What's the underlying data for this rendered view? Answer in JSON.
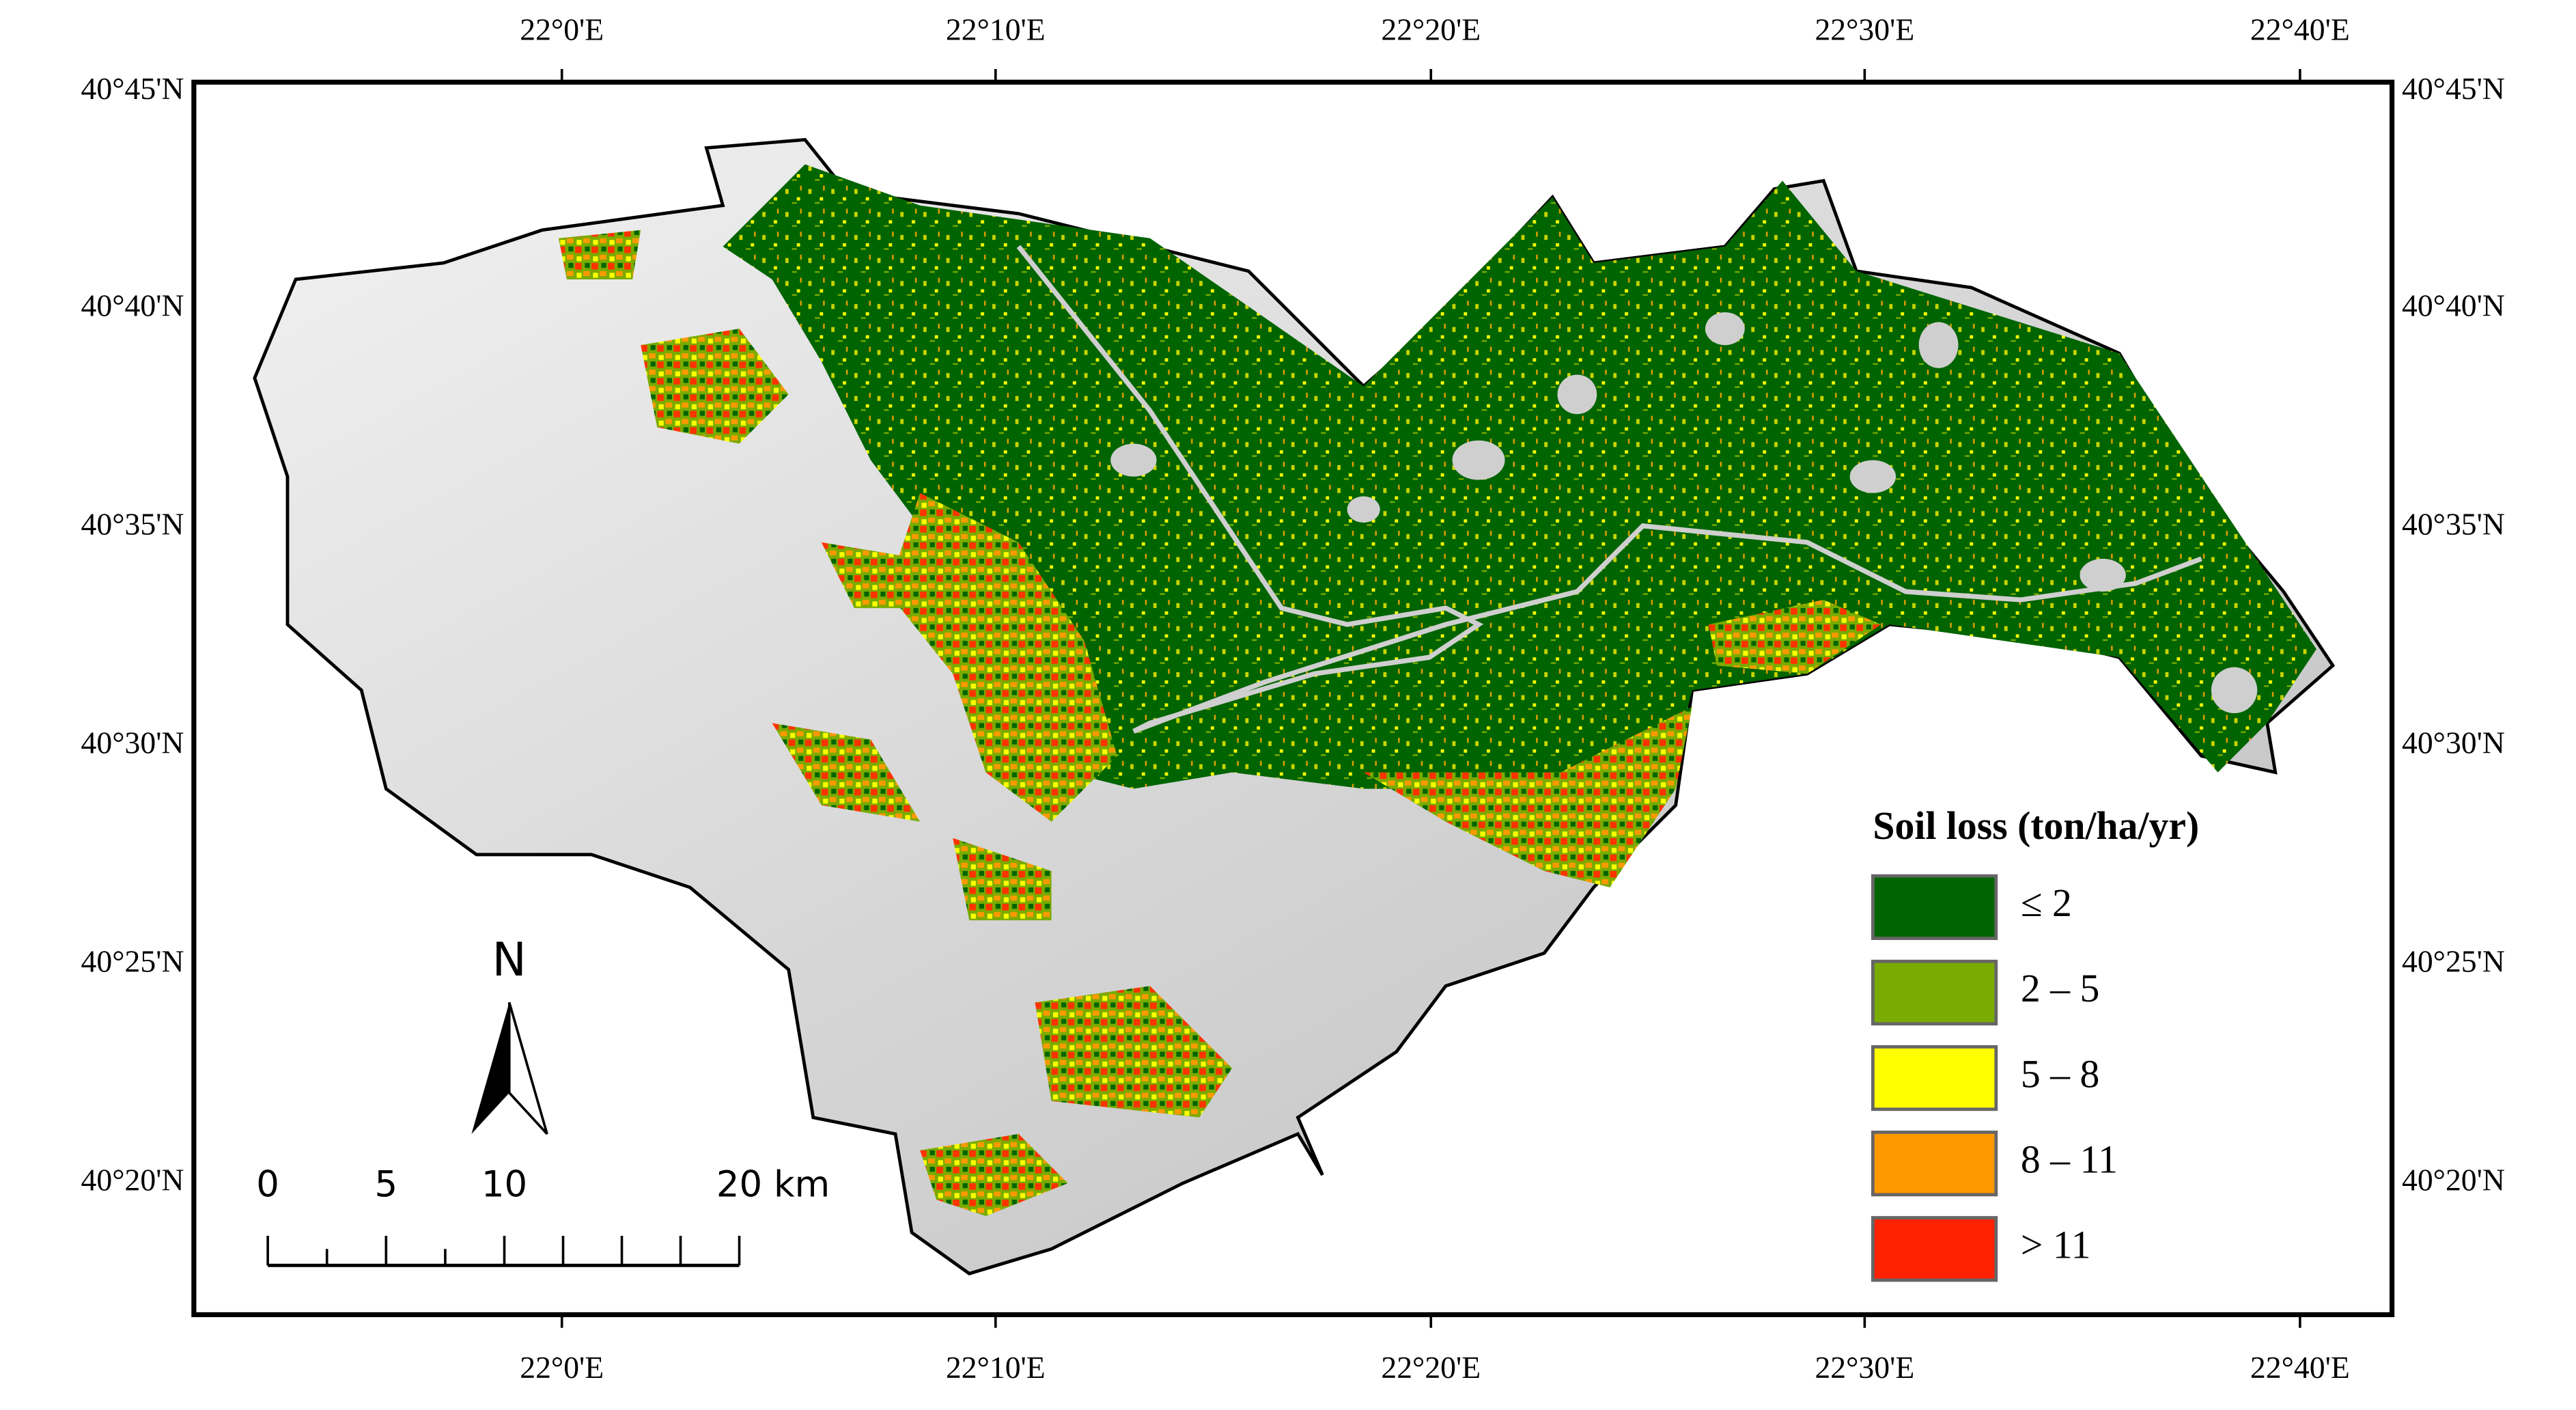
{
  "map": {
    "lon_labels": [
      "22°0'E",
      "22°10'E",
      "22°20'E",
      "22°30'E",
      "22°40'E"
    ],
    "lat_labels": [
      "40°45'N",
      "40°40'N",
      "40°35'N",
      "40°30'N",
      "40°25'N",
      "40°20'N"
    ],
    "north": "N",
    "scale_bar": [
      "0",
      "5",
      "10",
      "20 km"
    ],
    "legend": {
      "title": "Soil loss (ton/ha/yr)",
      "items": [
        {
          "label": "≤ 2",
          "color": "#006400"
        },
        {
          "label": "2 – 5",
          "color": "#7aab00"
        },
        {
          "label": "5 – 8",
          "color": "#ffff00"
        },
        {
          "label": "8 – 11",
          "color": "#ff9900"
        },
        {
          "label": "> 11",
          "color": "#ff2200"
        }
      ]
    }
  }
}
